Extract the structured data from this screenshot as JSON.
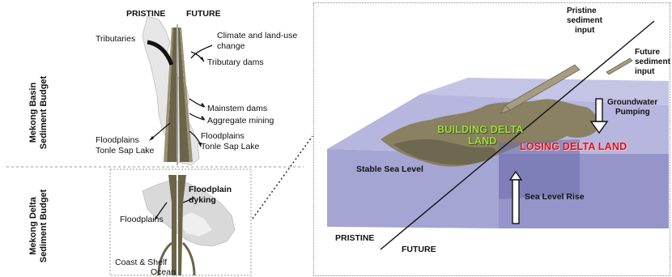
{
  "left": {
    "header_pristine": "PRISTINE",
    "header_future": "FUTURE",
    "section_basin": [
      "Mekong Basin",
      "Sediment Budget"
    ],
    "section_delta": [
      "Mekong Delta",
      "Sediment Budget"
    ],
    "labels": {
      "tributaries": "Tributaries",
      "climate_line1": "Climate and land-use",
      "climate_line2": "change",
      "tributary_dams": "Tributary dams",
      "mainstem_dams": "Mainstem dams",
      "aggregate_mining": "Aggregate mining",
      "floodplains_left": "Floodplains",
      "tonle_left": "Tonle Sap Lake",
      "floodplains_right": "Floodplains",
      "tonle_right": "Tonle Sap Lake",
      "floodplain_dyking_line1": "Floodplain",
      "floodplain_dyking_line2": "dyking",
      "delta_floodplains": "Floodplains",
      "coast_shelf": "Coast & Shelf",
      "ocean": "Ocean"
    }
  },
  "right": {
    "pristine_input_line1": "Pristine",
    "pristine_input_line2": "sediment",
    "pristine_input_line3": "input",
    "future_input_line1": "Future",
    "future_input_line2": "sediment",
    "future_input_line3": "input",
    "groundwater_line1": "Groundwater",
    "groundwater_line2": "Pumping",
    "building_line1": "BUILDING DELTA",
    "building_line2": "LAND",
    "losing": "LOSING DELTA LAND",
    "stable_sea_level": "Stable Sea Level",
    "sea_level_rise": "Sea Level Rise",
    "pristine": "PRISTINE",
    "future": "FUTURE"
  },
  "colors": {
    "land": "#8a8062",
    "land_dark": "#5e573f",
    "water_top": "#a9a9d8",
    "water_front": "#8e8ec8",
    "water_side": "#7b7bb8",
    "building_text": "#9fd14a",
    "losing_text": "#d0121b",
    "basin_map": "#e4e4e4",
    "delta_map": "#d7d7d7"
  }
}
